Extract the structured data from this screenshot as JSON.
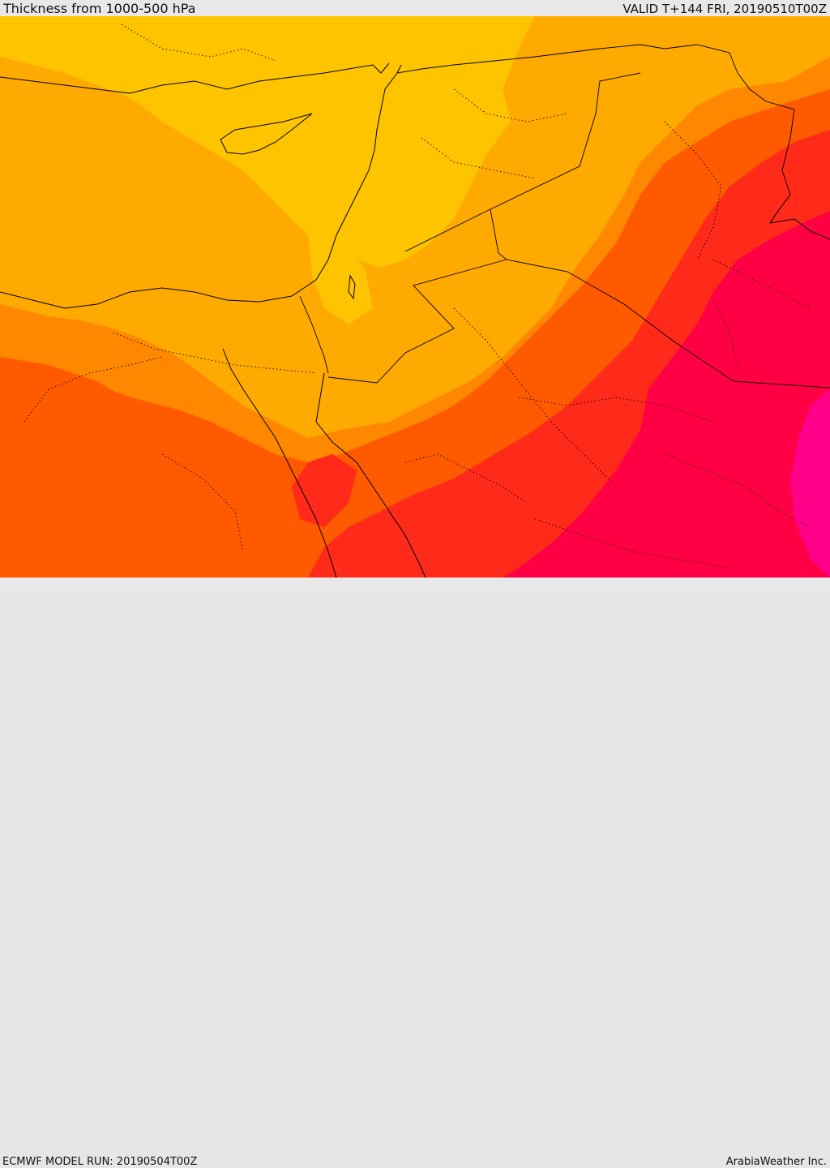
{
  "header": {
    "title": "Thickness from 1000-500 hPa",
    "valid": "VALID T+144 FRI, 20190510T00Z"
  },
  "footer": {
    "model_run": "ECMWF MODEL RUN: 20190504T00Z",
    "credit": "ArabiaWeather Inc."
  },
  "map": {
    "colors": {
      "band1": "#FFC400",
      "band2": "#FFAA00",
      "band3": "#FF8800",
      "band4": "#FF5A00",
      "band5": "#FF2A1A",
      "band6": "#FF0044",
      "band7": "#FF0088",
      "borders": "#000000"
    }
  }
}
